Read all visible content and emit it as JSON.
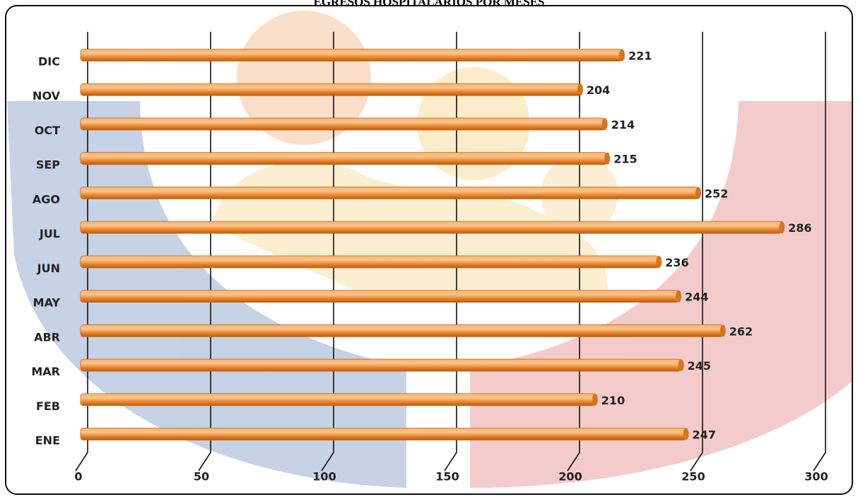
{
  "chart_data": {
    "type": "bar",
    "orientation": "horizontal",
    "title": "EGRESOS HOSPITALARIOS POR MESES",
    "categories": [
      "ENE",
      "FEB",
      "MAR",
      "ABR",
      "MAY",
      "JUN",
      "JUL",
      "AGO",
      "SEP",
      "OCT",
      "NOV",
      "DIC"
    ],
    "values": [
      247,
      210,
      245,
      262,
      244,
      236,
      286,
      252,
      215,
      214,
      204,
      221
    ],
    "color": "#f08a2c",
    "xlim": [
      0,
      300
    ],
    "xticks": [
      0,
      50,
      100,
      150,
      200,
      250,
      300
    ],
    "grid": true
  }
}
